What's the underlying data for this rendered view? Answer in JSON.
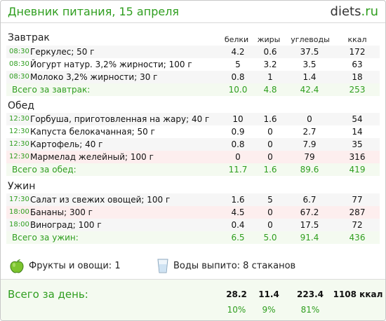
{
  "header": {
    "title": "Дневник питания, 15 апреля",
    "brand_main": "diets",
    "brand_tld": ".ru"
  },
  "columns": [
    "белки",
    "жиры",
    "углеводы",
    "ккал"
  ],
  "meals": [
    {
      "name": "Завтрак",
      "items": [
        {
          "time": "08:30",
          "food": "Геркулес; 50 г",
          "p": "4.2",
          "f": "0.6",
          "c": "37.5",
          "k": "172"
        },
        {
          "time": "08:30",
          "food": "Йогурт натур. 3,2% жирности; 100 г",
          "p": "5",
          "f": "3.2",
          "c": "3.5",
          "k": "63"
        },
        {
          "time": "08:30",
          "food": "Молоко 3,2% жирности; 30 г",
          "p": "0.8",
          "f": "1",
          "c": "1.4",
          "k": "18"
        }
      ],
      "total": {
        "label": "Всего за завтрак:",
        "p": "10.0",
        "f": "4.8",
        "c": "42.4",
        "k": "253"
      }
    },
    {
      "name": "Обед",
      "items": [
        {
          "time": "12:30",
          "food": "Горбуша, приготовленная на жару; 40 г",
          "p": "10",
          "f": "1.6",
          "c": "0",
          "k": "54"
        },
        {
          "time": "12:30",
          "food": "Капуста белокачанная; 50 г",
          "p": "0.9",
          "f": "0",
          "c": "2.7",
          "k": "14"
        },
        {
          "time": "12:30",
          "food": "Картофель; 40 г",
          "p": "0.8",
          "f": "0",
          "c": "7.9",
          "k": "35"
        },
        {
          "time": "12:30",
          "food": "Мармелад желейный; 100 г",
          "p": "0",
          "f": "0",
          "c": "79",
          "k": "316"
        }
      ],
      "total": {
        "label": "Всего за обед:",
        "p": "11.7",
        "f": "1.6",
        "c": "89.6",
        "k": "419"
      }
    },
    {
      "name": "Ужин",
      "items": [
        {
          "time": "17:30",
          "food": "Салат из свежих овощей; 100 г",
          "p": "1.6",
          "f": "5",
          "c": "6.7",
          "k": "77"
        },
        {
          "time": "18:00",
          "food": "Бананы; 300 г",
          "p": "4.5",
          "f": "0",
          "c": "67.2",
          "k": "287"
        },
        {
          "time": "18:00",
          "food": "Виноград; 100 г",
          "p": "0.4",
          "f": "0",
          "c": "17.5",
          "k": "72"
        }
      ],
      "total": {
        "label": "Всего за ужин:",
        "p": "6.5",
        "f": "5.0",
        "c": "91.4",
        "k": "436"
      }
    }
  ],
  "extras": {
    "fruits": "Фрукты и овощи: 1",
    "water": "Воды выпито: 8 стаканов"
  },
  "day": {
    "label": "Всего за день:",
    "p": "28.2",
    "f": "11.4",
    "c": "223.4",
    "k": "1108 ккал",
    "pp": "10%",
    "fp": "9%",
    "cp": "81%"
  }
}
